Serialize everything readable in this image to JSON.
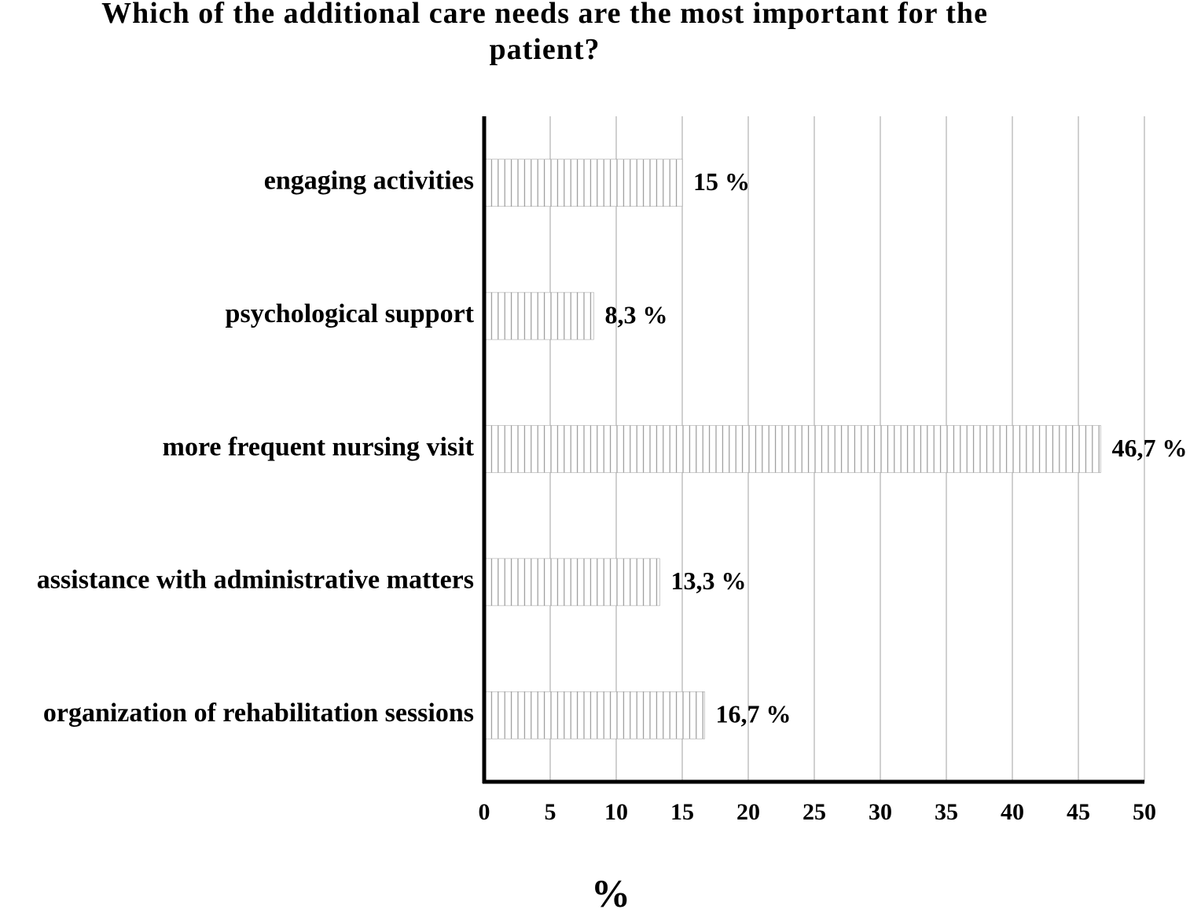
{
  "chart_data": {
    "type": "hbar",
    "title": "Which of the additional care needs are the most important for the patient?",
    "categories": [
      "engaging activities",
      "psychological support",
      "more frequent nursing visit",
      "assistance with administrative matters",
      "organization of rehabilitation sessions"
    ],
    "values": [
      15,
      8.3,
      46.7,
      13.3,
      16.7
    ],
    "value_labels": [
      "15 %",
      "8,3 %",
      "46,7 %",
      "13,3 %",
      "16,7 %"
    ],
    "color": "#999999",
    "xlabel": "%",
    "xlim": [
      0,
      50
    ],
    "xticks": [
      0,
      5,
      10,
      15,
      20,
      25,
      30,
      35,
      40,
      45,
      50
    ],
    "grid": true
  }
}
